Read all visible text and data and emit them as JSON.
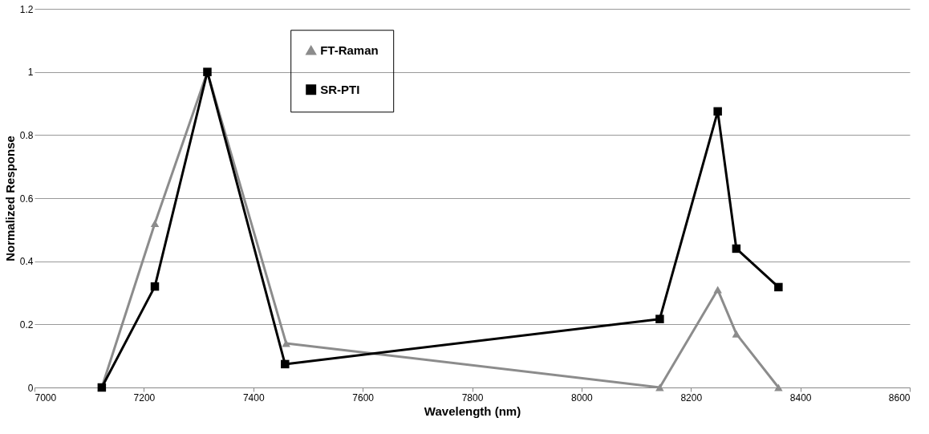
{
  "chart_data": {
    "type": "line",
    "xlabel": "Wavelength (nm)",
    "ylabel": "Normalized Response",
    "xlim": [
      7000,
      8600
    ],
    "xticks": [
      7000,
      7200,
      7400,
      7600,
      7800,
      8000,
      8200,
      8400,
      8600
    ],
    "ylim": [
      0,
      1.2
    ],
    "yticks": [
      0,
      0.2,
      0.4,
      0.6,
      0.8,
      1,
      1.2
    ],
    "grid": "y",
    "legend": "top",
    "line_style": "solid",
    "series": [
      {
        "name": "FT-Raman",
        "color": "#8c8c8c",
        "marker": "triangle",
        "x": [
          7123,
          7220,
          7316,
          7460,
          8143,
          8249,
          8283,
          8360
        ],
        "values": [
          0,
          0.52,
          1,
          0.14,
          0,
          0.31,
          0.17,
          0
        ]
      },
      {
        "name": "SR-PTI",
        "color": "#000000",
        "marker": "square",
        "x": [
          7123,
          7220,
          7316,
          7458,
          8143,
          8249,
          8283,
          8360
        ],
        "values": [
          0,
          0.32,
          1,
          0.074,
          0.217,
          0.875,
          0.44,
          0.318
        ]
      }
    ]
  }
}
